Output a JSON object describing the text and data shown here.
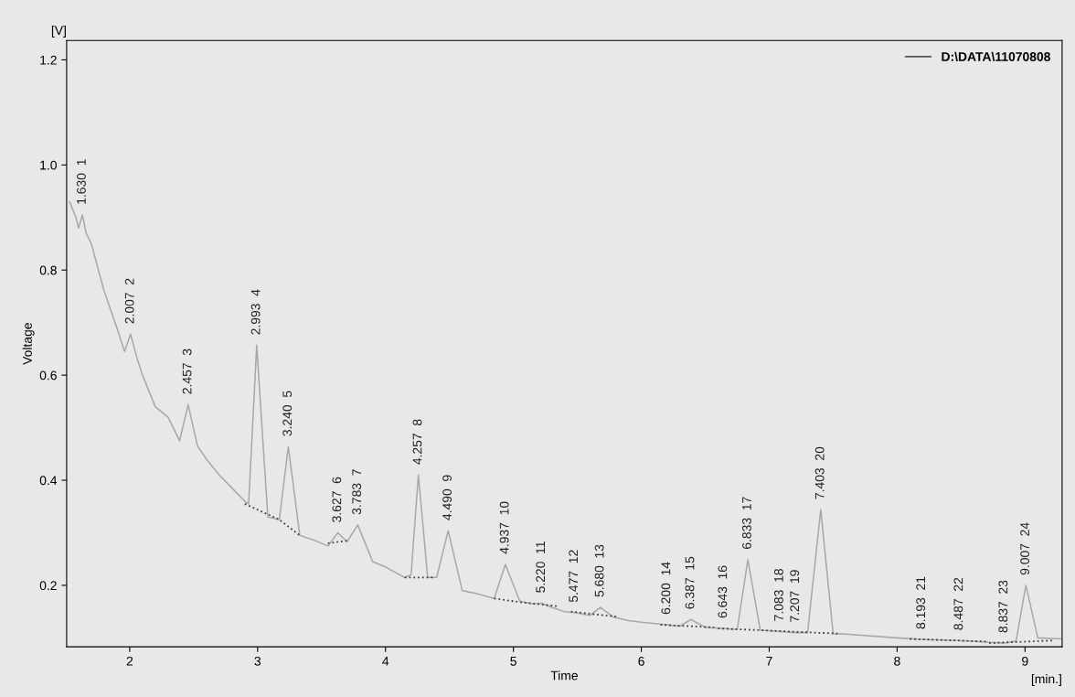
{
  "chart_data": {
    "type": "line",
    "xlabel": "Time",
    "ylabel": "Voltage",
    "xlim": [
      1.507,
      9.29
    ],
    "ylim": [
      0.083,
      1.237
    ],
    "xticks": [
      2,
      3,
      4,
      5,
      6,
      7,
      8,
      9
    ],
    "yticks": [
      0.2,
      0.4,
      0.6,
      0.8,
      {
        "value": 1.0,
        "label": "1.0"
      },
      1.2
    ],
    "grid": false,
    "legend": "top right",
    "marker": "none",
    "series": [
      {
        "name": "D:\\DATA\\11070808",
        "color": "#a8a8a8",
        "line_style": "solid",
        "x": [
          1.53,
          1.58,
          1.6,
          1.63,
          1.66,
          1.7,
          1.8,
          1.9,
          1.96,
          2.007,
          2.06,
          2.1,
          2.2,
          2.3,
          2.39,
          2.457,
          2.53,
          2.6,
          2.7,
          2.8,
          2.9,
          2.93,
          2.993,
          3.08,
          3.17,
          3.24,
          3.33,
          3.45,
          3.55,
          3.627,
          3.7,
          3.783,
          3.9,
          4.0,
          4.15,
          4.2,
          4.257,
          4.33,
          4.4,
          4.49,
          4.6,
          4.7,
          4.85,
          4.937,
          5.05,
          5.15,
          5.22,
          5.3,
          5.4,
          5.477,
          5.6,
          5.68,
          5.78,
          5.9,
          6.0,
          6.2,
          6.3,
          6.387,
          6.5,
          6.643,
          6.75,
          6.833,
          6.93,
          7.083,
          7.207,
          7.3,
          7.403,
          7.5,
          7.6,
          8.0,
          8.193,
          8.487,
          8.7,
          8.837,
          8.93,
          9.007,
          9.1,
          9.28
        ],
        "values": [
          0.93,
          0.9,
          0.88,
          0.905,
          0.87,
          0.85,
          0.76,
          0.69,
          0.645,
          0.678,
          0.63,
          0.6,
          0.54,
          0.52,
          0.475,
          0.544,
          0.465,
          0.44,
          0.41,
          0.385,
          0.36,
          0.355,
          0.657,
          0.33,
          0.325,
          0.464,
          0.295,
          0.285,
          0.275,
          0.3,
          0.283,
          0.315,
          0.245,
          0.235,
          0.215,
          0.22,
          0.41,
          0.215,
          0.215,
          0.304,
          0.19,
          0.185,
          0.175,
          0.24,
          0.17,
          0.165,
          0.166,
          0.158,
          0.15,
          0.148,
          0.143,
          0.158,
          0.14,
          0.133,
          0.13,
          0.125,
          0.122,
          0.135,
          0.12,
          0.118,
          0.116,
          0.249,
          0.115,
          0.112,
          0.11,
          0.11,
          0.344,
          0.108,
          0.107,
          0.1,
          0.097,
          0.095,
          0.092,
          0.09,
          0.094,
          0.2,
          0.1,
          0.098
        ]
      },
      {
        "color": "#404040",
        "line_style": "dotted",
        "x": [
          2.9,
          3.17,
          3.33,
          3.4,
          3.55,
          3.7,
          3.75,
          4.15,
          4.38,
          4.4,
          4.85,
          5.05,
          5.35,
          5.4,
          5.45,
          5.82,
          5.9,
          6.15,
          6.57,
          6.58,
          6.6,
          7.55,
          7.6,
          8.1,
          8.7,
          8.71,
          8.72,
          9.22
        ],
        "values": [
          0.355,
          0.325,
          0.295,
          null,
          0.28,
          0.285,
          null,
          0.215,
          0.215,
          null,
          0.175,
          0.168,
          0.16,
          null,
          0.15,
          0.14,
          null,
          0.125,
          0.12,
          null,
          0.118,
          0.108,
          null,
          0.098,
          0.093,
          null,
          0.09,
          0.095
        ]
      }
    ],
    "annotations": [
      "[V]",
      "[min.]",
      {
        "text": "1.630  1",
        "x": 1.63,
        "y": 0.905
      },
      {
        "text": "2.007  2",
        "x": 2.007,
        "y": 0.678
      },
      {
        "text": "2.457  3",
        "x": 2.457,
        "y": 0.544
      },
      {
        "text": "2.993  4",
        "x": 2.993,
        "y": 0.657
      },
      {
        "text": "3.240  5",
        "x": 3.24,
        "y": 0.464
      },
      {
        "text": "3.627  6",
        "x": 3.627,
        "y": 0.3
      },
      {
        "text": "3.783  7",
        "x": 3.783,
        "y": 0.315
      },
      {
        "text": "4.257  8",
        "x": 4.257,
        "y": 0.41
      },
      {
        "text": "4.490  9",
        "x": 4.49,
        "y": 0.304
      },
      {
        "text": "4.937  10",
        "x": 4.937,
        "y": 0.24
      },
      {
        "text": "5.220  11",
        "x": 5.22,
        "y": 0.166
      },
      {
        "text": "5.477  12",
        "x": 5.477,
        "y": 0.148
      },
      {
        "text": "5.680  13",
        "x": 5.68,
        "y": 0.158
      },
      {
        "text": "6.200  14",
        "x": 6.2,
        "y": 0.125
      },
      {
        "text": "6.387  15",
        "x": 6.387,
        "y": 0.135
      },
      {
        "text": "6.643  16",
        "x": 6.643,
        "y": 0.118
      },
      {
        "text": "6.833  17",
        "x": 6.833,
        "y": 0.249
      },
      {
        "text": "7.083  18",
        "x": 7.083,
        "y": 0.112
      },
      {
        "text": "7.207  19",
        "x": 7.207,
        "y": 0.11
      },
      {
        "text": "7.403  20",
        "x": 7.403,
        "y": 0.344
      },
      {
        "text": "8.193  21",
        "x": 8.193,
        "y": 0.097
      },
      {
        "text": "8.487  22",
        "x": 8.487,
        "y": 0.095
      },
      {
        "text": "8.837  23",
        "x": 8.837,
        "y": 0.09
      },
      {
        "text": "9.007  24",
        "x": 9.007,
        "y": 0.2
      }
    ]
  }
}
